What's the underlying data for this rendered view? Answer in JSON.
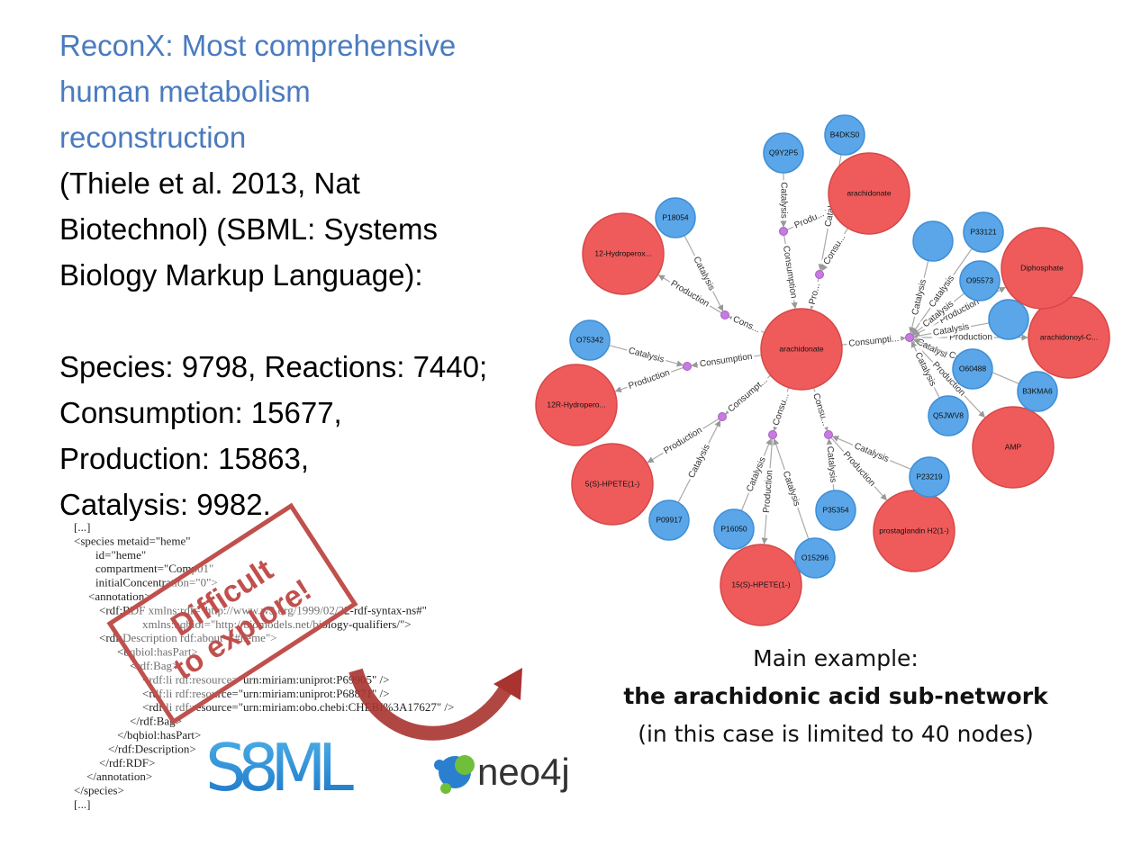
{
  "title_lines": [
    "ReconX: Most comprehensive",
    "human metabolism",
    "reconstruction"
  ],
  "body_lines": [
    "(Thiele et al. 2013, Nat",
    "Biotechnol) (SBML: Systems",
    "Biology Markup Language):",
    "Species: 9798, Reactions: 7440;",
    "Consumption: 15677,",
    "Production: 15863,",
    "Catalysis: 9982."
  ],
  "xml_lines": [
    "[...]",
    "<species metaid=\"heme\"",
    "id=\"heme\"",
    "compartment=\"Comp01\"",
    "initialConcentration=\"0\">",
    "<annotation>",
    "<rdf:RDF xmlns:rdf=\"http://www.w3.org/1999/02/22-rdf-syntax-ns#\"",
    "xmlns:bqbiol=\"http://biomodels.net/biology-qualifiers/\">",
    "<rdf:Description rdf:about=\"#heme\">",
    "<bqbiol:hasPart>",
    "<rdf:Bag>",
    "<rdf:li rdf:resource=\"urn:miriam:uniprot:P69905\" />",
    "<rdf:li rdf:resource=\"urn:miriam:uniprot:P68871\" />",
    "<rdf:li rdf:resource=\"urn:miriam:obo.chebi:CHEBI%3A17627\" />",
    "</rdf:Bag>",
    "</bqbiol:hasPart>",
    "</rdf:Description>",
    "</rdf:RDF>",
    "</annotation>",
    "</species>",
    "[...]"
  ],
  "stamp": [
    "Difficult",
    "to explore!"
  ],
  "logos": {
    "sbml": "S8ML",
    "neo4j": "neo4j"
  },
  "graph": {
    "nodes": [
      "arachidonate",
      "B4DKS0",
      "Q9Y2P5",
      "arachidonate",
      "P18054",
      "12-Hydroperox...",
      "O75342",
      "12R-Hydropero...",
      "5(S)-HPETE(1-)",
      "P09917",
      "P16050",
      "15(S)-HPETE(1-)",
      "O15296",
      "P35354",
      "prostaglandin H2(1-)",
      "P23219",
      "AMP",
      "Q5JWV8",
      "B3KMA6",
      "O60488",
      "arachidonoyl-C...",
      null,
      "Diphosphate",
      "O95573",
      "P33121",
      null
    ],
    "edge_labels": [
      "Catalysis",
      "Consumption",
      "Produ...",
      "Catal...",
      "Consu...",
      "Pro...",
      "Catalysis",
      "Production",
      "Cons...",
      "Catalysis",
      "Production",
      "Consumption",
      "Consumpt...",
      "Production",
      "Catalysis",
      "Consu...",
      "Catalysis",
      "Production",
      "Catalysis",
      "Consu...",
      "Catalysis",
      "Catalysis",
      "Production",
      "Consumpti...",
      "Production",
      "Production",
      "Production",
      "Catalysis",
      "Catalysis",
      "Catalysis",
      "Catalysis",
      "Catalysis",
      "Catalysis",
      "Catalysis"
    ]
  },
  "caption": [
    "Main example:",
    "the arachidonic acid sub-network",
    "(in this case is limited to 40 nodes)"
  ]
}
